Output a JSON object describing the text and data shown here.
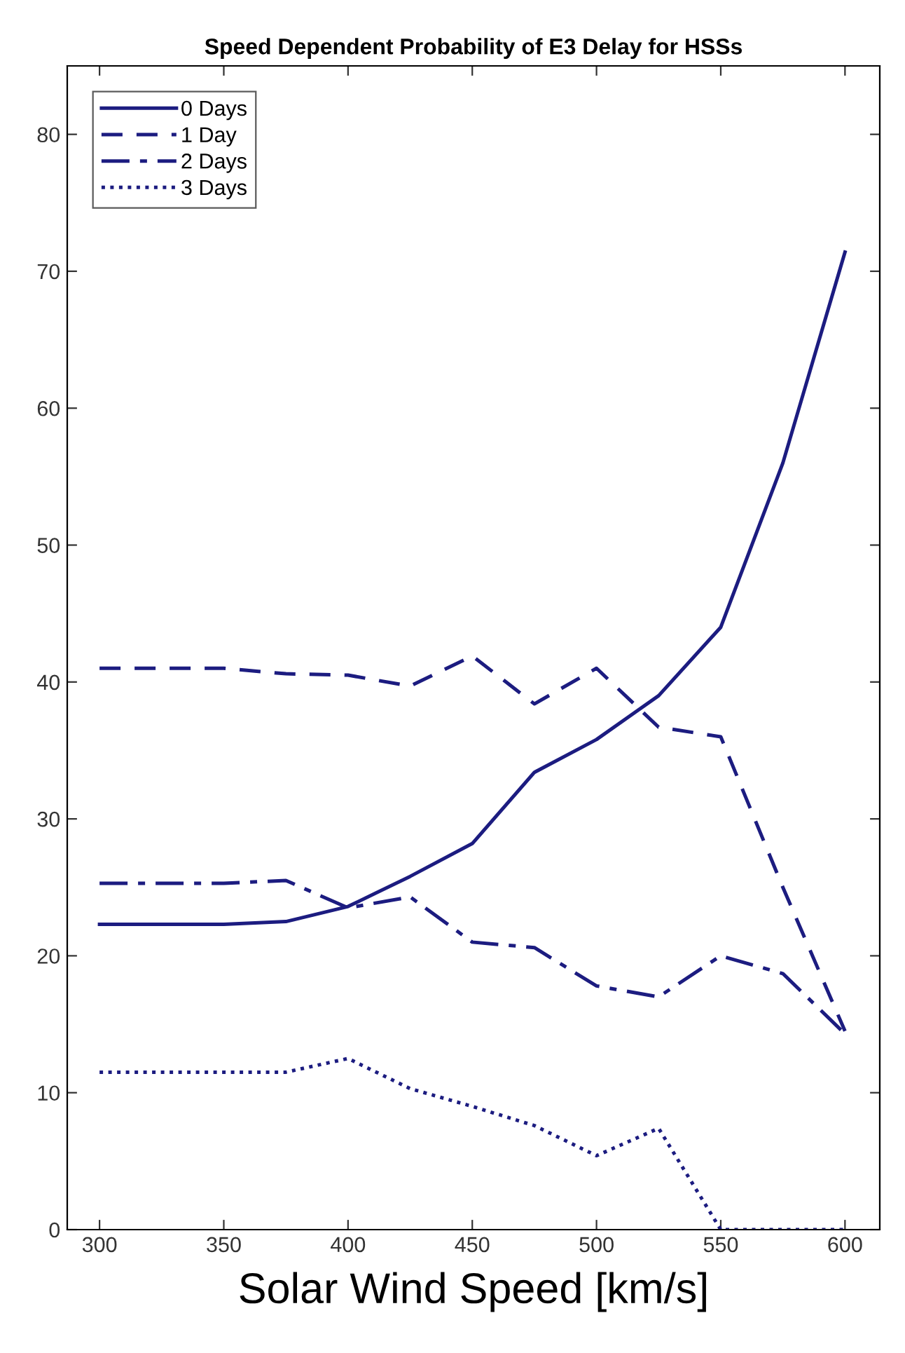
{
  "chart_data": {
    "type": "line",
    "title": "Speed Dependent Probability of E3 Delay for HSSs",
    "xlabel": "Solar Wind Speed [km/s]",
    "x": [
      300,
      325,
      350,
      375,
      400,
      425,
      450,
      475,
      500,
      525,
      550,
      575,
      600
    ],
    "series": [
      {
        "name": "0 Days",
        "color": "#1c1c80",
        "line_style": "solid",
        "values": [
          22.3,
          22.3,
          22.3,
          22.5,
          23.6,
          25.8,
          28.2,
          33.4,
          35.8,
          39,
          44,
          56,
          71.4
        ]
      },
      {
        "name": "1 Day",
        "color": "#1c1c80",
        "line_style": "dashed",
        "values": [
          41,
          41,
          41,
          40.6,
          40.5,
          39.7,
          41.9,
          38.4,
          41,
          36.7,
          36,
          25,
          14.5
        ]
      },
      {
        "name": "2 Days",
        "color": "#1c1c80",
        "line_style": "dashdot",
        "values": [
          25.3,
          25.3,
          25.3,
          25.5,
          23.5,
          24.3,
          21,
          20.6,
          17.8,
          17,
          20,
          18.7,
          14.3
        ]
      },
      {
        "name": "3 Days",
        "color": "#1c1c80",
        "line_style": "dotted",
        "values": [
          11.5,
          11.5,
          11.5,
          11.5,
          12.5,
          10.3,
          9,
          7.6,
          5.4,
          7.4,
          0,
          0,
          0
        ]
      }
    ],
    "xlim": [
      287,
      614
    ],
    "xticks": [
      300,
      350,
      400,
      450,
      500,
      550,
      600
    ],
    "ylim": [
      0,
      85
    ],
    "yticks": [
      0,
      10,
      20,
      30,
      40,
      50,
      60,
      70,
      80
    ],
    "grid": false,
    "legend": "top left",
    "marker": "none"
  }
}
